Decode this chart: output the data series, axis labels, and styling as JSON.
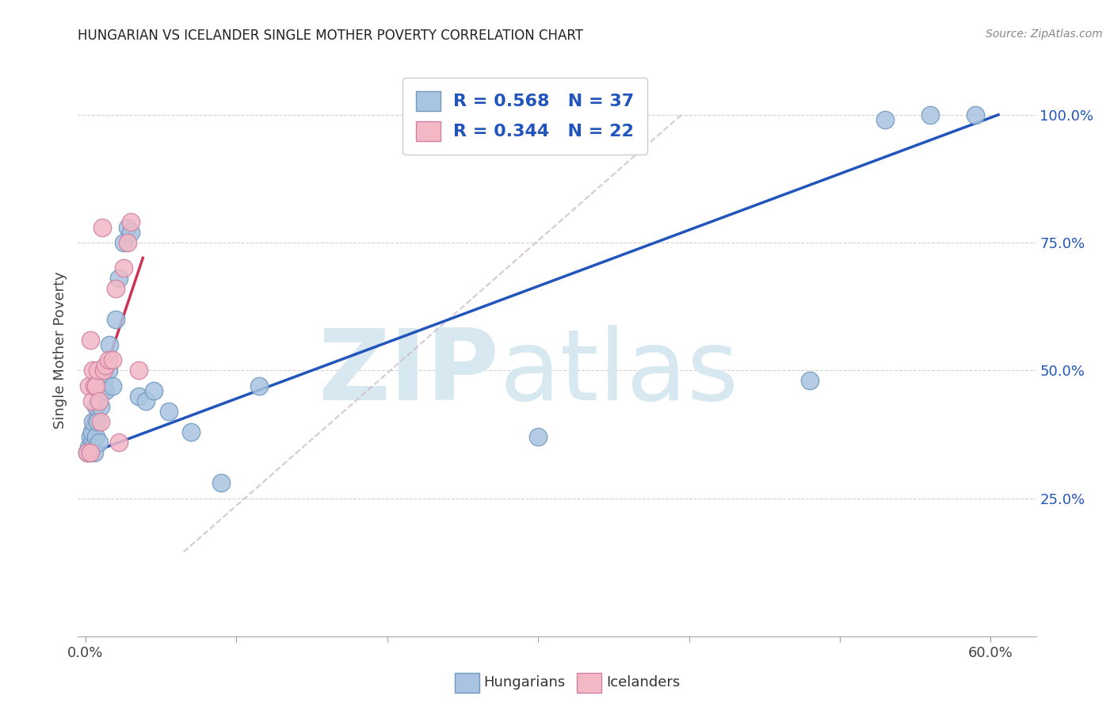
{
  "title": "HUNGARIAN VS ICELANDER SINGLE MOTHER POVERTY CORRELATION CHART",
  "source": "Source: ZipAtlas.com",
  "ylabel": "Single Mother Poverty",
  "xlim": [
    -0.005,
    0.63
  ],
  "ylim": [
    -0.02,
    1.1
  ],
  "x_tick_positions": [
    0.0,
    0.1,
    0.2,
    0.3,
    0.4,
    0.5,
    0.6
  ],
  "x_tick_labels": [
    "0.0%",
    "",
    "",
    "",
    "",
    "",
    "60.0%"
  ],
  "y_tick_positions": [
    0.25,
    0.5,
    0.75,
    1.0
  ],
  "y_tick_labels": [
    "25.0%",
    "50.0%",
    "75.0%",
    "100.0%"
  ],
  "hungarian_x": [
    0.001,
    0.002,
    0.003,
    0.003,
    0.004,
    0.004,
    0.005,
    0.005,
    0.006,
    0.007,
    0.007,
    0.008,
    0.009,
    0.01,
    0.011,
    0.012,
    0.013,
    0.015,
    0.016,
    0.018,
    0.02,
    0.022,
    0.025,
    0.028,
    0.03,
    0.035,
    0.04,
    0.045,
    0.055,
    0.07,
    0.09,
    0.115,
    0.3,
    0.48,
    0.53,
    0.56,
    0.59
  ],
  "hungarian_y": [
    0.34,
    0.35,
    0.34,
    0.37,
    0.36,
    0.38,
    0.35,
    0.4,
    0.34,
    0.37,
    0.43,
    0.4,
    0.36,
    0.43,
    0.46,
    0.48,
    0.46,
    0.5,
    0.55,
    0.47,
    0.6,
    0.68,
    0.75,
    0.78,
    0.77,
    0.45,
    0.44,
    0.46,
    0.42,
    0.38,
    0.28,
    0.47,
    0.37,
    0.48,
    0.99,
    1.0,
    1.0
  ],
  "icelander_x": [
    0.001,
    0.002,
    0.003,
    0.003,
    0.004,
    0.005,
    0.006,
    0.007,
    0.008,
    0.009,
    0.01,
    0.011,
    0.012,
    0.013,
    0.015,
    0.018,
    0.02,
    0.022,
    0.025,
    0.028,
    0.03,
    0.035
  ],
  "icelander_y": [
    0.34,
    0.47,
    0.34,
    0.56,
    0.44,
    0.5,
    0.47,
    0.47,
    0.5,
    0.44,
    0.4,
    0.78,
    0.5,
    0.51,
    0.52,
    0.52,
    0.66,
    0.36,
    0.7,
    0.75,
    0.79,
    0.5
  ],
  "hun_line_x": [
    0.0,
    0.605
  ],
  "hun_line_y": [
    0.335,
    1.0
  ],
  "ice_line_x": [
    0.0,
    0.038
  ],
  "ice_line_y": [
    0.385,
    0.72
  ],
  "dash_line_x": [
    0.065,
    0.395
  ],
  "dash_line_y": [
    0.145,
    1.0
  ],
  "hungarian_color": "#A8C4E0",
  "icelander_color": "#F2B8C6",
  "hungarian_edge": "#7099C0",
  "icelander_edge": "#D080A0",
  "regression_blue": "#2255BB",
  "regression_pink": "#CC3355",
  "dash_color": "#CCBBCC",
  "R_hungarian": 0.568,
  "N_hungarian": 37,
  "R_icelander": 0.344,
  "N_icelander": 22,
  "background_color": "#FFFFFF",
  "grid_color": "#CCCCCC",
  "watermark_zip": "ZIP",
  "watermark_atlas": "atlas",
  "watermark_color": "#D8E8F0"
}
